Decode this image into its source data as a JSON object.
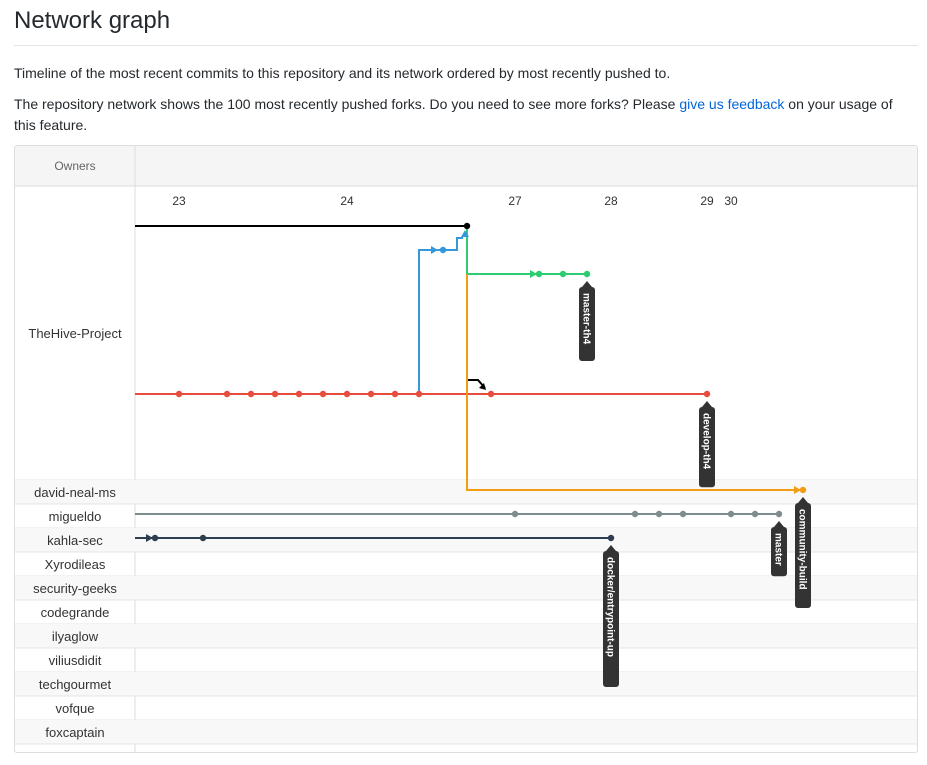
{
  "page": {
    "title": "Network graph",
    "intro": "Timeline of the most recent commits to this repository and its network ordered by most recently pushed to.",
    "note_before": "The repository network shows the 100 most recently pushed forks. Do you need to see more forks? Please ",
    "note_link": "give us feedback",
    "note_after": " on your usage of this feature."
  },
  "graph": {
    "owners_header": "Owners",
    "dates": [
      "23",
      "24",
      "27",
      "28",
      "29",
      "30"
    ],
    "owners": [
      "TheHive-Project",
      "david-neal-ms",
      "migueldo",
      "kahla-sec",
      "Xyrodileas",
      "security-geeks",
      "codegrande",
      "ilyaglow",
      "viliusdidit",
      "techgourmet",
      "vofque",
      "foxcaptain"
    ],
    "branches": [
      {
        "label": "master-th4",
        "color": "#27ae60"
      },
      {
        "label": "develop-th4",
        "color": "#e74c3c"
      },
      {
        "label": "community-build",
        "color": "#f39c12"
      },
      {
        "label": "master",
        "color": "#7f8c8d"
      },
      {
        "label": "docker/entrypoint-up",
        "color": "#2c3e50"
      }
    ],
    "colors": {
      "main": "#000000",
      "blue": "#3498db",
      "green": "#2ecc71",
      "red": "#e74c3c",
      "orange": "#f39c12",
      "gray": "#7f8c8d",
      "navy": "#2c3e50"
    }
  }
}
